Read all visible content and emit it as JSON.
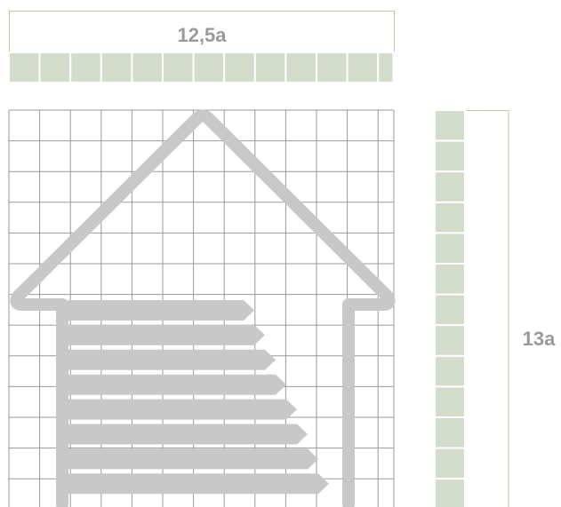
{
  "top_dimension": {
    "label": "12,5a",
    "units": 12.5
  },
  "side_dimension": {
    "label": "13a",
    "units": 13
  },
  "grid": {
    "columns": 12.5,
    "rows": 13
  },
  "energy_bars": {
    "count": 8
  },
  "colors": {
    "accent_fill": "#d4dccb",
    "accent_line": "#b8cca5",
    "outline": "#c8c8c8",
    "grid_line": "#9a9a9a",
    "label_text": "#9a9a9a"
  }
}
